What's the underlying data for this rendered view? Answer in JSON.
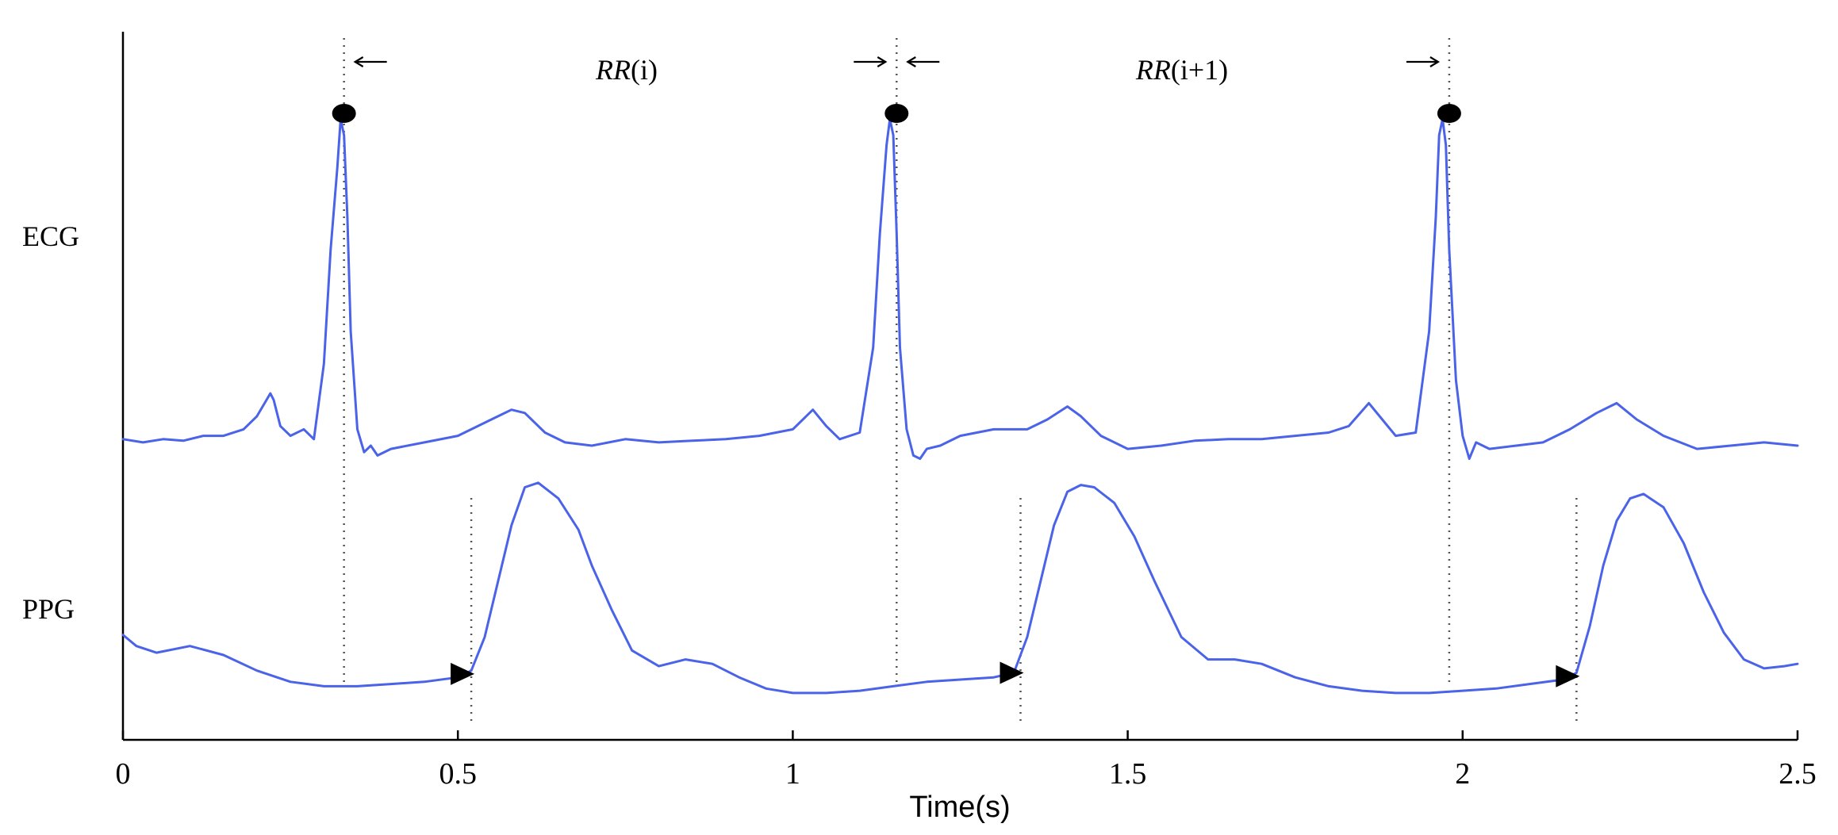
{
  "chart_data": {
    "type": "line",
    "xlabel": "Time(s)",
    "xlim": [
      0,
      2.5
    ],
    "xticks": [
      {
        "value": 0,
        "label": "0"
      },
      {
        "value": 0.5,
        "label": "0.5"
      },
      {
        "value": 1,
        "label": "1"
      },
      {
        "value": 1.5,
        "label": "1.5"
      },
      {
        "value": 2,
        "label": "2"
      },
      {
        "value": 2.5,
        "label": "2.5"
      }
    ],
    "series": [
      {
        "name": "ECG",
        "color": "#4a63e8",
        "x": [
          0,
          0.03,
          0.06,
          0.09,
          0.12,
          0.15,
          0.18,
          0.2,
          0.22,
          0.225,
          0.235,
          0.25,
          0.27,
          0.285,
          0.3,
          0.31,
          0.32,
          0.325,
          0.33,
          0.335,
          0.34,
          0.35,
          0.36,
          0.37,
          0.38,
          0.4,
          0.45,
          0.5,
          0.55,
          0.58,
          0.6,
          0.63,
          0.66,
          0.7,
          0.75,
          0.8,
          0.85,
          0.9,
          0.95,
          1.0,
          1.03,
          1.05,
          1.07,
          1.1,
          1.12,
          1.13,
          1.14,
          1.145,
          1.15,
          1.155,
          1.16,
          1.17,
          1.18,
          1.19,
          1.2,
          1.22,
          1.25,
          1.3,
          1.35,
          1.38,
          1.41,
          1.43,
          1.46,
          1.5,
          1.55,
          1.6,
          1.65,
          1.7,
          1.75,
          1.8,
          1.83,
          1.86,
          1.88,
          1.9,
          1.93,
          1.95,
          1.96,
          1.965,
          1.97,
          1.975,
          1.98,
          1.99,
          2.0,
          2.01,
          2.02,
          2.04,
          2.08,
          2.12,
          2.16,
          2.2,
          2.23,
          2.26,
          2.3,
          2.35,
          2.4,
          2.45,
          2.5
        ],
        "y": [
          0.02,
          0.01,
          0.02,
          0.015,
          0.03,
          0.03,
          0.05,
          0.09,
          0.16,
          0.14,
          0.06,
          0.03,
          0.05,
          0.02,
          0.25,
          0.6,
          0.85,
          1.0,
          0.95,
          0.7,
          0.35,
          0.05,
          -0.02,
          0.0,
          -0.03,
          -0.01,
          0.01,
          0.03,
          0.08,
          0.11,
          0.1,
          0.04,
          0.01,
          0.0,
          0.02,
          0.01,
          0.015,
          0.02,
          0.03,
          0.05,
          0.11,
          0.06,
          0.02,
          0.04,
          0.3,
          0.65,
          0.92,
          1.0,
          0.95,
          0.65,
          0.3,
          0.05,
          -0.03,
          -0.04,
          -0.01,
          0.0,
          0.03,
          0.05,
          0.05,
          0.08,
          0.12,
          0.09,
          0.03,
          -0.01,
          0.0,
          0.015,
          0.02,
          0.02,
          0.03,
          0.04,
          0.06,
          0.13,
          0.08,
          0.03,
          0.04,
          0.35,
          0.7,
          0.95,
          1.0,
          0.92,
          0.6,
          0.2,
          0.03,
          -0.04,
          0.01,
          -0.01,
          0.0,
          0.01,
          0.05,
          0.1,
          0.13,
          0.08,
          0.03,
          -0.01,
          0.0,
          0.01,
          0.0
        ]
      },
      {
        "name": "PPG",
        "color": "#4a63e8",
        "x": [
          0,
          0.02,
          0.05,
          0.1,
          0.15,
          0.2,
          0.25,
          0.3,
          0.35,
          0.4,
          0.45,
          0.5,
          0.52,
          0.54,
          0.56,
          0.58,
          0.6,
          0.62,
          0.65,
          0.68,
          0.7,
          0.73,
          0.76,
          0.8,
          0.84,
          0.88,
          0.92,
          0.96,
          1.0,
          1.05,
          1.1,
          1.15,
          1.2,
          1.25,
          1.3,
          1.33,
          1.35,
          1.37,
          1.39,
          1.41,
          1.43,
          1.45,
          1.48,
          1.51,
          1.54,
          1.58,
          1.62,
          1.66,
          1.7,
          1.75,
          1.8,
          1.85,
          1.9,
          1.95,
          2.0,
          2.05,
          2.1,
          2.15,
          2.17,
          2.19,
          2.21,
          2.23,
          2.25,
          2.27,
          2.3,
          2.33,
          2.36,
          2.39,
          2.42,
          2.45,
          2.48,
          2.5
        ],
        "y": [
          0.31,
          0.26,
          0.23,
          0.26,
          0.22,
          0.15,
          0.1,
          0.08,
          0.08,
          0.09,
          0.1,
          0.12,
          0.15,
          0.3,
          0.55,
          0.8,
          0.97,
          0.99,
          0.92,
          0.78,
          0.62,
          0.42,
          0.24,
          0.17,
          0.2,
          0.18,
          0.12,
          0.07,
          0.05,
          0.05,
          0.06,
          0.08,
          0.1,
          0.11,
          0.12,
          0.14,
          0.3,
          0.55,
          0.8,
          0.95,
          0.98,
          0.97,
          0.9,
          0.75,
          0.55,
          0.3,
          0.2,
          0.2,
          0.18,
          0.12,
          0.08,
          0.06,
          0.05,
          0.05,
          0.06,
          0.07,
          0.09,
          0.11,
          0.14,
          0.35,
          0.62,
          0.82,
          0.92,
          0.94,
          0.88,
          0.72,
          0.5,
          0.32,
          0.2,
          0.16,
          0.17,
          0.18
        ]
      }
    ],
    "r_peaks": [
      0.33,
      1.155,
      1.98
    ],
    "ppg_onsets": [
      0.52,
      1.34,
      2.17
    ],
    "annotations": [
      {
        "kind": "interval",
        "label_main": "RR",
        "label_paren": "(i)",
        "from": 0.33,
        "to": 1.155
      },
      {
        "kind": "interval",
        "label_main": "RR",
        "label_paren": "(i+1)",
        "from": 1.155,
        "to": 1.98
      }
    ]
  }
}
